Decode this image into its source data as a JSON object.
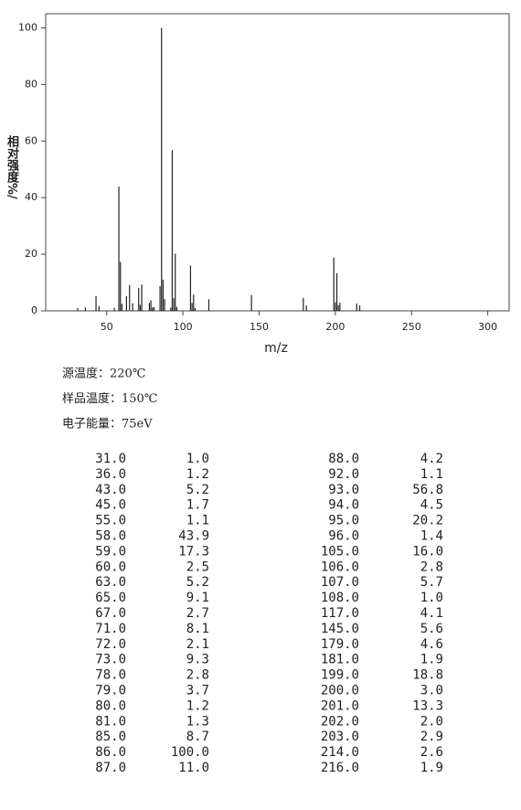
{
  "chart_data": {
    "type": "stem",
    "x_label": "m/z",
    "y_label": "相对强度%/",
    "x": [
      31,
      36,
      43,
      45,
      55,
      58,
      59,
      60,
      63,
      65,
      67,
      71,
      72,
      73,
      78,
      79,
      80,
      81,
      85,
      86,
      87,
      88,
      92,
      93,
      94,
      95,
      96,
      105,
      106,
      107,
      108,
      117,
      145,
      179,
      181,
      199,
      200,
      201,
      202,
      203,
      214,
      216
    ],
    "values": [
      1.0,
      1.2,
      5.2,
      1.7,
      1.1,
      43.9,
      17.3,
      2.5,
      5.2,
      9.1,
      2.7,
      8.1,
      2.1,
      9.3,
      2.8,
      3.7,
      1.2,
      1.3,
      8.7,
      100,
      11.0,
      4.2,
      1.1,
      56.8,
      4.5,
      20.2,
      1.4,
      16.0,
      2.8,
      5.7,
      1.0,
      4.1,
      5.6,
      4.6,
      1.9,
      18.8,
      3.0,
      13.3,
      2.0,
      2.9,
      2.6,
      1.9
    ],
    "color": "#222222",
    "xlim": [
      10,
      314
    ],
    "xticks": [
      50,
      100,
      150,
      200,
      250,
      300
    ],
    "ylim": [
      0,
      105
    ],
    "yticks": [
      0,
      20,
      40,
      60,
      80,
      100
    ]
  },
  "conditions": [
    "源温度：220℃",
    "样品温度：150℃",
    "电子能量：75eV"
  ],
  "table": {
    "rows": [
      [
        "31.0",
        "1.0",
        "88.0",
        "4.2"
      ],
      [
        "36.0",
        "1.2",
        "92.0",
        "1.1"
      ],
      [
        "43.0",
        "5.2",
        "93.0",
        "56.8"
      ],
      [
        "45.0",
        "1.7",
        "94.0",
        "4.5"
      ],
      [
        "55.0",
        "1.1",
        "95.0",
        "20.2"
      ],
      [
        "58.0",
        "43.9",
        "96.0",
        "1.4"
      ],
      [
        "59.0",
        "17.3",
        "105.0",
        "16.0"
      ],
      [
        "60.0",
        "2.5",
        "106.0",
        "2.8"
      ],
      [
        "63.0",
        "5.2",
        "107.0",
        "5.7"
      ],
      [
        "65.0",
        "9.1",
        "108.0",
        "1.0"
      ],
      [
        "67.0",
        "2.7",
        "117.0",
        "4.1"
      ],
      [
        "71.0",
        "8.1",
        "145.0",
        "5.6"
      ],
      [
        "72.0",
        "2.1",
        "179.0",
        "4.6"
      ],
      [
        "73.0",
        "9.3",
        "181.0",
        "1.9"
      ],
      [
        "78.0",
        "2.8",
        "199.0",
        "18.8"
      ],
      [
        "79.0",
        "3.7",
        "200.0",
        "3.0"
      ],
      [
        "80.0",
        "1.2",
        "201.0",
        "13.3"
      ],
      [
        "81.0",
        "1.3",
        "202.0",
        "2.0"
      ],
      [
        "85.0",
        "8.7",
        "203.0",
        "2.9"
      ],
      [
        "86.0",
        "100.0",
        "214.0",
        "2.6"
      ],
      [
        "87.0",
        "11.0",
        "216.0",
        "1.9"
      ],
      [
        "",
        "",
        "",
        ""
      ]
    ]
  }
}
